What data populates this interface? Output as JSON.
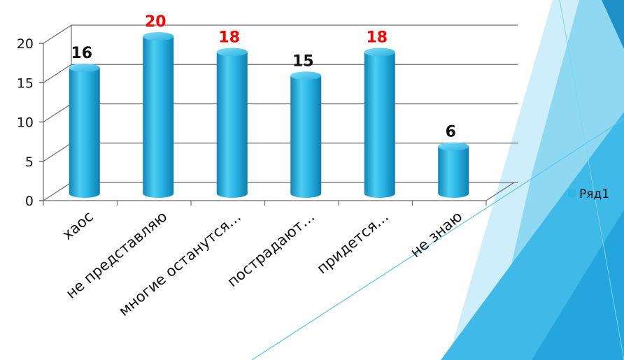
{
  "chart_data": {
    "type": "bar",
    "categories": [
      "хаос",
      "не представляю",
      "многие останутся…",
      "пострадают…",
      "придется…",
      "не знаю"
    ],
    "series": [
      {
        "name": "Ряд1",
        "values": [
          16,
          20,
          18,
          15,
          18,
          6
        ]
      }
    ],
    "ylim": [
      0,
      20
    ],
    "yticks": [
      0,
      5,
      10,
      15,
      20
    ],
    "grid": true,
    "legend": "right",
    "bar_color": "#2bb7e6",
    "label_colors": [
      "#111111",
      "#ff0000",
      "#ff0000",
      "#111111",
      "#ff0000",
      "#111111"
    ]
  }
}
